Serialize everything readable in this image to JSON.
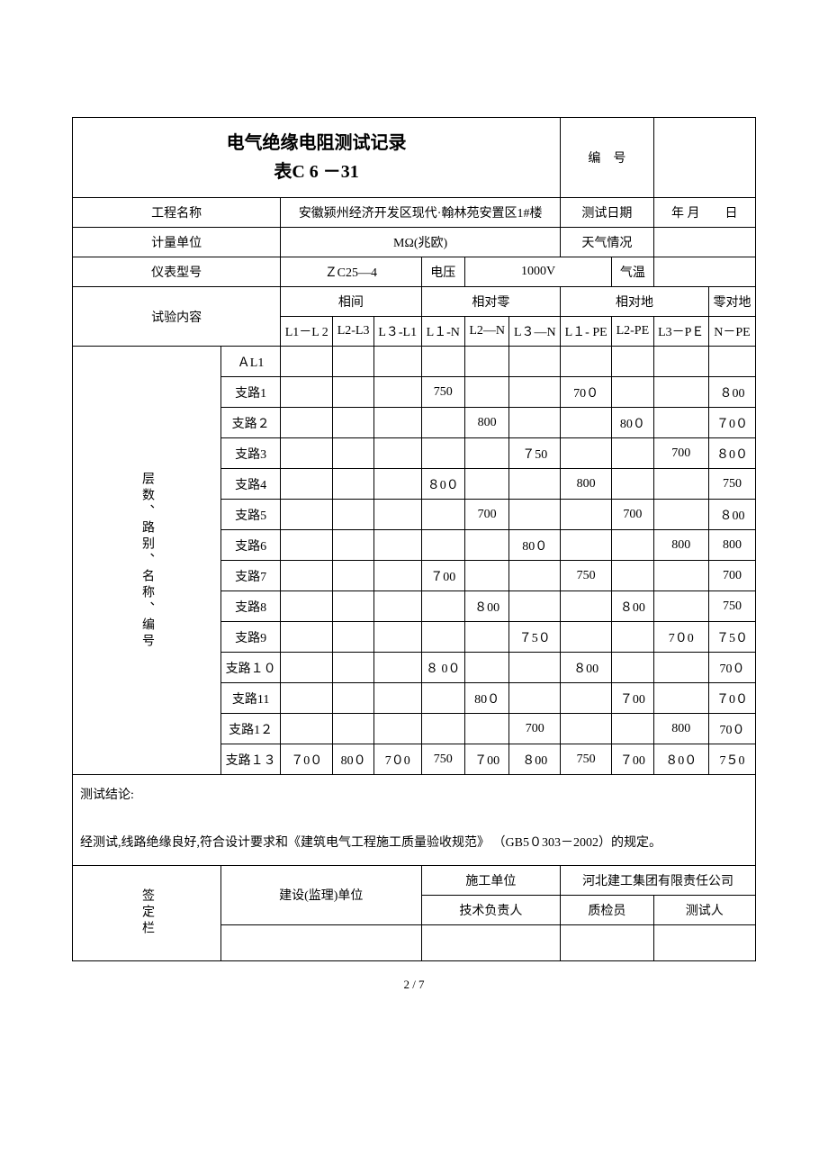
{
  "title_line1": "电气绝缘电阻测试记录",
  "title_line2": "表C 6 －31",
  "header": {
    "bianhao_label": "编　号",
    "bianhao_value": "",
    "project_label": "工程名称",
    "project_value": "安徽颍州经济开发区现代·翰林苑安置区1#楼",
    "test_date_label": "测试日期",
    "test_date_value": "年  月　　日",
    "unit_label": "计量单位",
    "unit_value": "MΩ(兆欧)",
    "weather_label": "天气情况",
    "weather_value": "",
    "meter_label": "仪表型号",
    "meter_value": "ＺC25—4",
    "voltage_label": "电压",
    "voltage_value": "1000V",
    "temp_label": "气温",
    "temp_value": ""
  },
  "test_content_label": "试验内容",
  "group_headers": {
    "phase_phase": "相间",
    "phase_neutral": "相对零",
    "phase_earth": "相对地",
    "neutral_earth": "零对地"
  },
  "col_headers": [
    "L1－L 2",
    "L2-L3",
    "L３-L1",
    "L１-N",
    "L2—N",
    "L３—N",
    "L１- PE",
    "L2-PE",
    "L3－PＥ",
    "N－PE"
  ],
  "side_label": "层数、路别、名称、编号",
  "rows": [
    {
      "name": "ＡL1",
      "v": [
        "",
        "",
        "",
        "",
        "",
        "",
        "",
        "",
        "",
        ""
      ]
    },
    {
      "name": "支路1",
      "v": [
        "",
        "",
        "",
        "750",
        "",
        "",
        "70０",
        "",
        "",
        "８00"
      ]
    },
    {
      "name": "支路２",
      "v": [
        "",
        "",
        "",
        "",
        "800",
        "",
        "",
        "80０",
        "",
        "７0０"
      ]
    },
    {
      "name": "支路3",
      "v": [
        "",
        "",
        "",
        "",
        "",
        "７50",
        "",
        "",
        "700",
        "８0０"
      ]
    },
    {
      "name": "支路4",
      "v": [
        "",
        "",
        "",
        "８0０",
        "",
        "",
        "800",
        "",
        "",
        "750"
      ]
    },
    {
      "name": "支路5",
      "v": [
        "",
        "",
        "",
        "",
        "700",
        "",
        "",
        "700",
        "",
        "８00"
      ]
    },
    {
      "name": "支路6",
      "v": [
        "",
        "",
        "",
        "",
        "",
        "80０",
        "",
        "",
        "800",
        "800"
      ]
    },
    {
      "name": "支路7",
      "v": [
        "",
        "",
        "",
        "７00",
        "",
        "",
        "750",
        "",
        "",
        "700"
      ]
    },
    {
      "name": "支路8",
      "v": [
        "",
        "",
        "",
        "",
        "８00",
        "",
        "",
        "８00",
        "",
        "750"
      ]
    },
    {
      "name": "支路9",
      "v": [
        "",
        "",
        "",
        "",
        "",
        "７5０",
        "",
        "",
        "7０0",
        "７5０"
      ]
    },
    {
      "name": "支路１０",
      "v": [
        "",
        "",
        "",
        "８ 0０",
        "",
        "",
        "８00",
        "",
        "",
        "70０"
      ]
    },
    {
      "name": "支路11",
      "v": [
        "",
        "",
        "",
        "",
        "80０",
        "",
        "",
        "７00",
        "",
        "７0０"
      ]
    },
    {
      "name": "支路1２",
      "v": [
        "",
        "",
        "",
        "",
        "",
        "700",
        "",
        "",
        "800",
        "70０"
      ]
    },
    {
      "name": "支路１３",
      "v": [
        "７0０",
        "80０",
        "7０0",
        "750",
        "７00",
        "８00",
        "750",
        "７00",
        "８0０",
        "7５0"
      ]
    }
  ],
  "conclusion_label": "测试结论:",
  "conclusion_text": "经测试,线路绝缘良好,符合设计要求和《建筑电气工程施工质量验收规范》 （GB5０303－2002）的规定。",
  "sign": {
    "label": "签定栏",
    "build_unit": "建设(监理)单位",
    "construct_unit": "施工单位",
    "construct_value": "河北建工集团有限责任公司",
    "tech_lead": "技术负责人",
    "inspector": "质检员",
    "tester": "测试人"
  },
  "page": "2 / 7"
}
